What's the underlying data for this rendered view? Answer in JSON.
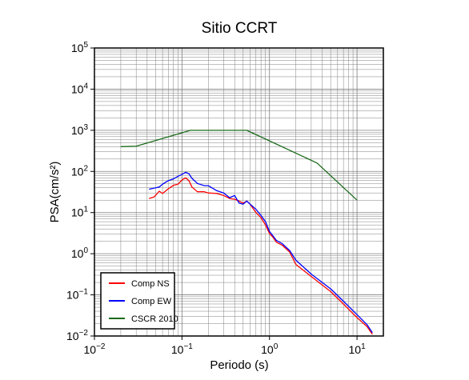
{
  "chart_data": {
    "type": "line",
    "title": "Sitio CCRT",
    "xlabel": "Periodo (s)",
    "ylabel": "PSA(cm/s²)",
    "x_scale": "log",
    "y_scale": "log",
    "xlim": [
      0.01,
      20
    ],
    "ylim": [
      0.01,
      100000
    ],
    "x_ticks": [
      {
        "value": 0.01,
        "base": "10",
        "exp": "−2"
      },
      {
        "value": 0.1,
        "base": "10",
        "exp": "−1"
      },
      {
        "value": 1,
        "base": "10",
        "exp": "0"
      },
      {
        "value": 10,
        "base": "10",
        "exp": "1"
      }
    ],
    "y_ticks": [
      {
        "value": 0.01,
        "base": "10",
        "exp": "−2"
      },
      {
        "value": 0.1,
        "base": "10",
        "exp": "−1"
      },
      {
        "value": 1,
        "base": "10",
        "exp": "0"
      },
      {
        "value": 10,
        "base": "10",
        "exp": "1"
      },
      {
        "value": 100,
        "base": "10",
        "exp": "2"
      },
      {
        "value": 1000,
        "base": "10",
        "exp": "3"
      },
      {
        "value": 10000,
        "base": "10",
        "exp": "4"
      },
      {
        "value": 100000,
        "base": "10",
        "exp": "5"
      }
    ],
    "grid": true,
    "legend_position": "bottom-left",
    "series": [
      {
        "name": "Comp NS",
        "color": "#ff0000",
        "x": [
          0.042,
          0.048,
          0.055,
          0.06,
          0.07,
          0.08,
          0.09,
          0.1,
          0.11,
          0.12,
          0.13,
          0.15,
          0.18,
          0.2,
          0.25,
          0.3,
          0.35,
          0.4,
          0.45,
          0.5,
          0.55,
          0.6,
          0.7,
          0.8,
          0.9,
          1.0,
          1.1,
          1.2,
          1.4,
          1.7,
          2.0,
          3.0,
          5.0,
          7.0,
          10.0,
          13.0,
          15.0
        ],
        "y": [
          22,
          24,
          33,
          29,
          38,
          46,
          49,
          62,
          70,
          60,
          42,
          32,
          32,
          30,
          29,
          26,
          22,
          21,
          19,
          17,
          19,
          16,
          10,
          7.5,
          5.0,
          3.1,
          2.5,
          1.9,
          1.6,
          1.1,
          0.55,
          0.28,
          0.12,
          0.06,
          0.028,
          0.017,
          0.011
        ]
      },
      {
        "name": "Comp EW",
        "color": "#0000ff",
        "x": [
          0.042,
          0.05,
          0.055,
          0.06,
          0.07,
          0.08,
          0.09,
          0.1,
          0.11,
          0.12,
          0.13,
          0.15,
          0.18,
          0.2,
          0.25,
          0.3,
          0.35,
          0.4,
          0.45,
          0.5,
          0.55,
          0.6,
          0.7,
          0.8,
          0.9,
          1.0,
          1.1,
          1.2,
          1.4,
          1.7,
          2.0,
          3.0,
          5.0,
          7.0,
          10.0,
          13.0,
          15.0
        ],
        "y": [
          37,
          40,
          42,
          49,
          60,
          66,
          76,
          85,
          95,
          88,
          68,
          51,
          45,
          45,
          34,
          30,
          23,
          26,
          17,
          16,
          19,
          16,
          12,
          8.5,
          6.0,
          3.5,
          2.7,
          2.1,
          1.75,
          1.2,
          0.7,
          0.32,
          0.14,
          0.07,
          0.033,
          0.019,
          0.012
        ]
      },
      {
        "name": "CSCR 2010",
        "color": "#1a6b1a",
        "x": [
          0.02,
          0.03,
          0.125,
          0.55,
          3.5,
          10.0
        ],
        "y": [
          400,
          410,
          1000,
          1000,
          160,
          20
        ]
      }
    ]
  }
}
